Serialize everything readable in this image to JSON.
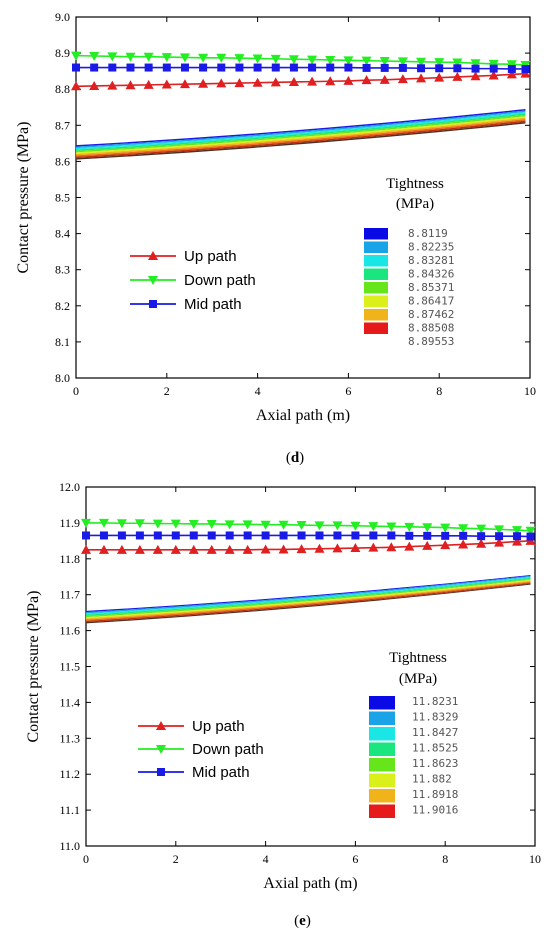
{
  "chart_data": [
    {
      "type": "line",
      "panel_label": "d",
      "xlabel": "Axial  path (m)",
      "ylabel": "Contact  pressure (MPa)",
      "xlim": [
        0,
        10
      ],
      "ylim": [
        8.0,
        9.0
      ],
      "xticks": [
        "0",
        "2",
        "4",
        "6",
        "8",
        "10"
      ],
      "yticks": [
        "8.0",
        "8.1",
        "8.2",
        "8.3",
        "8.4",
        "8.5",
        "8.6",
        "8.7",
        "8.8",
        "8.9",
        "9.0"
      ],
      "grid": false,
      "legend_position": "left",
      "x": [
        0,
        0.4,
        0.8,
        1.2,
        1.6,
        2.0,
        2.4,
        2.8,
        3.2,
        3.6,
        4.0,
        4.4,
        4.8,
        5.2,
        5.6,
        6.0,
        6.4,
        6.8,
        7.2,
        7.6,
        8.0,
        8.4,
        8.8,
        9.2,
        9.6,
        9.9
      ],
      "series": [
        {
          "name": "Up path",
          "color": "#e02020",
          "marker": "triangle-up",
          "values": [
            8.808,
            8.809,
            8.81,
            8.811,
            8.812,
            8.813,
            8.814,
            8.815,
            8.816,
            8.817,
            8.818,
            8.819,
            8.82,
            8.821,
            8.822,
            8.823,
            8.825,
            8.826,
            8.828,
            8.83,
            8.832,
            8.834,
            8.836,
            8.838,
            8.841,
            8.843
          ]
        },
        {
          "name": "Down path",
          "color": "#22ee22",
          "marker": "triangle-down",
          "values": [
            8.893,
            8.892,
            8.891,
            8.89,
            8.89,
            8.889,
            8.888,
            8.887,
            8.887,
            8.886,
            8.885,
            8.884,
            8.883,
            8.882,
            8.881,
            8.88,
            8.879,
            8.878,
            8.877,
            8.876,
            8.875,
            8.874,
            8.872,
            8.87,
            8.869,
            8.867
          ]
        },
        {
          "name": "Mid path",
          "color": "#1a1ae6",
          "marker": "square",
          "values": [
            8.86,
            8.86,
            8.86,
            8.86,
            8.86,
            8.86,
            8.86,
            8.86,
            8.86,
            8.86,
            8.86,
            8.86,
            8.86,
            8.86,
            8.86,
            8.86,
            8.859,
            8.859,
            8.859,
            8.858,
            8.858,
            8.858,
            8.857,
            8.857,
            8.856,
            8.856
          ]
        }
      ],
      "band": {
        "y_top_start": 8.645,
        "y_top_end": 8.745,
        "y_bottom_start": 8.605,
        "y_bottom_end": 8.705
      },
      "colorbar": {
        "title": [
          "Tightness",
          "(MPa)"
        ],
        "labels": [
          "8.8119",
          "8.82235",
          "8.83281",
          "8.84326",
          "8.85371",
          "8.86417",
          "8.87462",
          "8.88508",
          "8.89553"
        ]
      }
    },
    {
      "type": "line",
      "panel_label": "e",
      "xlabel": "Axial path (m)",
      "ylabel": "Contact  pressure (MPa)",
      "xlim": [
        0,
        10
      ],
      "ylim": [
        11.0,
        12.0
      ],
      "xticks": [
        "0",
        "2",
        "4",
        "6",
        "8",
        "10"
      ],
      "yticks": [
        "11.0",
        "11.1",
        "11.2",
        "11.3",
        "11.4",
        "11.5",
        "11.6",
        "11.7",
        "11.8",
        "11.9",
        "12.0"
      ],
      "grid": false,
      "legend_position": "left",
      "x": [
        0,
        0.4,
        0.8,
        1.2,
        1.6,
        2.0,
        2.4,
        2.8,
        3.2,
        3.6,
        4.0,
        4.4,
        4.8,
        5.2,
        5.6,
        6.0,
        6.4,
        6.8,
        7.2,
        7.6,
        8.0,
        8.4,
        8.8,
        9.2,
        9.6,
        9.9
      ],
      "series": [
        {
          "name": "Up path",
          "color": "#e02020",
          "marker": "triangle-up",
          "values": [
            11.825,
            11.825,
            11.825,
            11.825,
            11.825,
            11.825,
            11.825,
            11.825,
            11.825,
            11.825,
            11.826,
            11.826,
            11.827,
            11.828,
            11.829,
            11.83,
            11.831,
            11.832,
            11.834,
            11.836,
            11.838,
            11.84,
            11.842,
            11.845,
            11.848,
            11.85
          ]
        },
        {
          "name": "Down path",
          "color": "#22ee22",
          "marker": "triangle-down",
          "values": [
            11.9,
            11.9,
            11.899,
            11.899,
            11.898,
            11.898,
            11.897,
            11.897,
            11.896,
            11.896,
            11.895,
            11.895,
            11.894,
            11.893,
            11.893,
            11.892,
            11.891,
            11.89,
            11.889,
            11.888,
            11.887,
            11.885,
            11.884,
            11.882,
            11.88,
            11.878
          ]
        },
        {
          "name": "Mid path",
          "color": "#1a1ae6",
          "marker": "square",
          "values": [
            11.865,
            11.865,
            11.865,
            11.865,
            11.865,
            11.865,
            11.865,
            11.865,
            11.865,
            11.865,
            11.865,
            11.865,
            11.865,
            11.865,
            11.865,
            11.865,
            11.865,
            11.865,
            11.864,
            11.864,
            11.864,
            11.864,
            11.863,
            11.863,
            11.863,
            11.862
          ]
        }
      ],
      "band": {
        "y_top_start": 11.655,
        "y_top_end": 11.755,
        "y_bottom_start": 11.62,
        "y_bottom_end": 11.728
      },
      "colorbar": {
        "title": [
          "Tightness",
          "(MPa)"
        ],
        "labels": [
          "11.8231",
          "11.8329",
          "11.8427",
          "11.8525",
          "11.8623",
          "11.882",
          "11.8918",
          "11.9016"
        ]
      }
    }
  ],
  "colorbar_colors": [
    "#0a0ae6",
    "#1aa3e6",
    "#1ae6e6",
    "#1ae680",
    "#66e61a",
    "#d9f01a",
    "#f0b41a",
    "#e61a1a"
  ],
  "band_colors": [
    "#1a1ae6",
    "#1aa3e6",
    "#1ae6e6",
    "#1ae680",
    "#66e61a",
    "#d9f01a",
    "#f0b41a",
    "#f06a1a",
    "#c03010",
    "#503020"
  ]
}
